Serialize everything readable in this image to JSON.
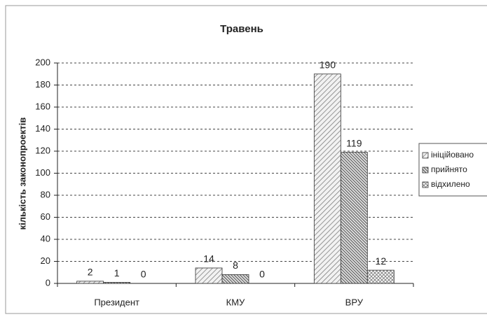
{
  "chart_data": {
    "type": "bar",
    "title": "Травень",
    "y_label": "кількість законопроектів",
    "categories": [
      "Президент",
      "КМУ",
      "ВРУ"
    ],
    "series": [
      {
        "name": "ініційовано",
        "color": "#c8c8c8",
        "values": [
          2,
          14,
          190
        ]
      },
      {
        "name": "прийнято",
        "color": "#707070",
        "values": [
          1,
          8,
          119
        ]
      },
      {
        "name": "відхилено",
        "color": "#e0e0e0",
        "values": [
          0,
          0,
          12
        ]
      }
    ],
    "ylim": [
      0,
      200
    ],
    "yticks": [
      0,
      20,
      40,
      60,
      80,
      100,
      120,
      140,
      160,
      180,
      200
    ],
    "grid": true,
    "legend": "right"
  }
}
